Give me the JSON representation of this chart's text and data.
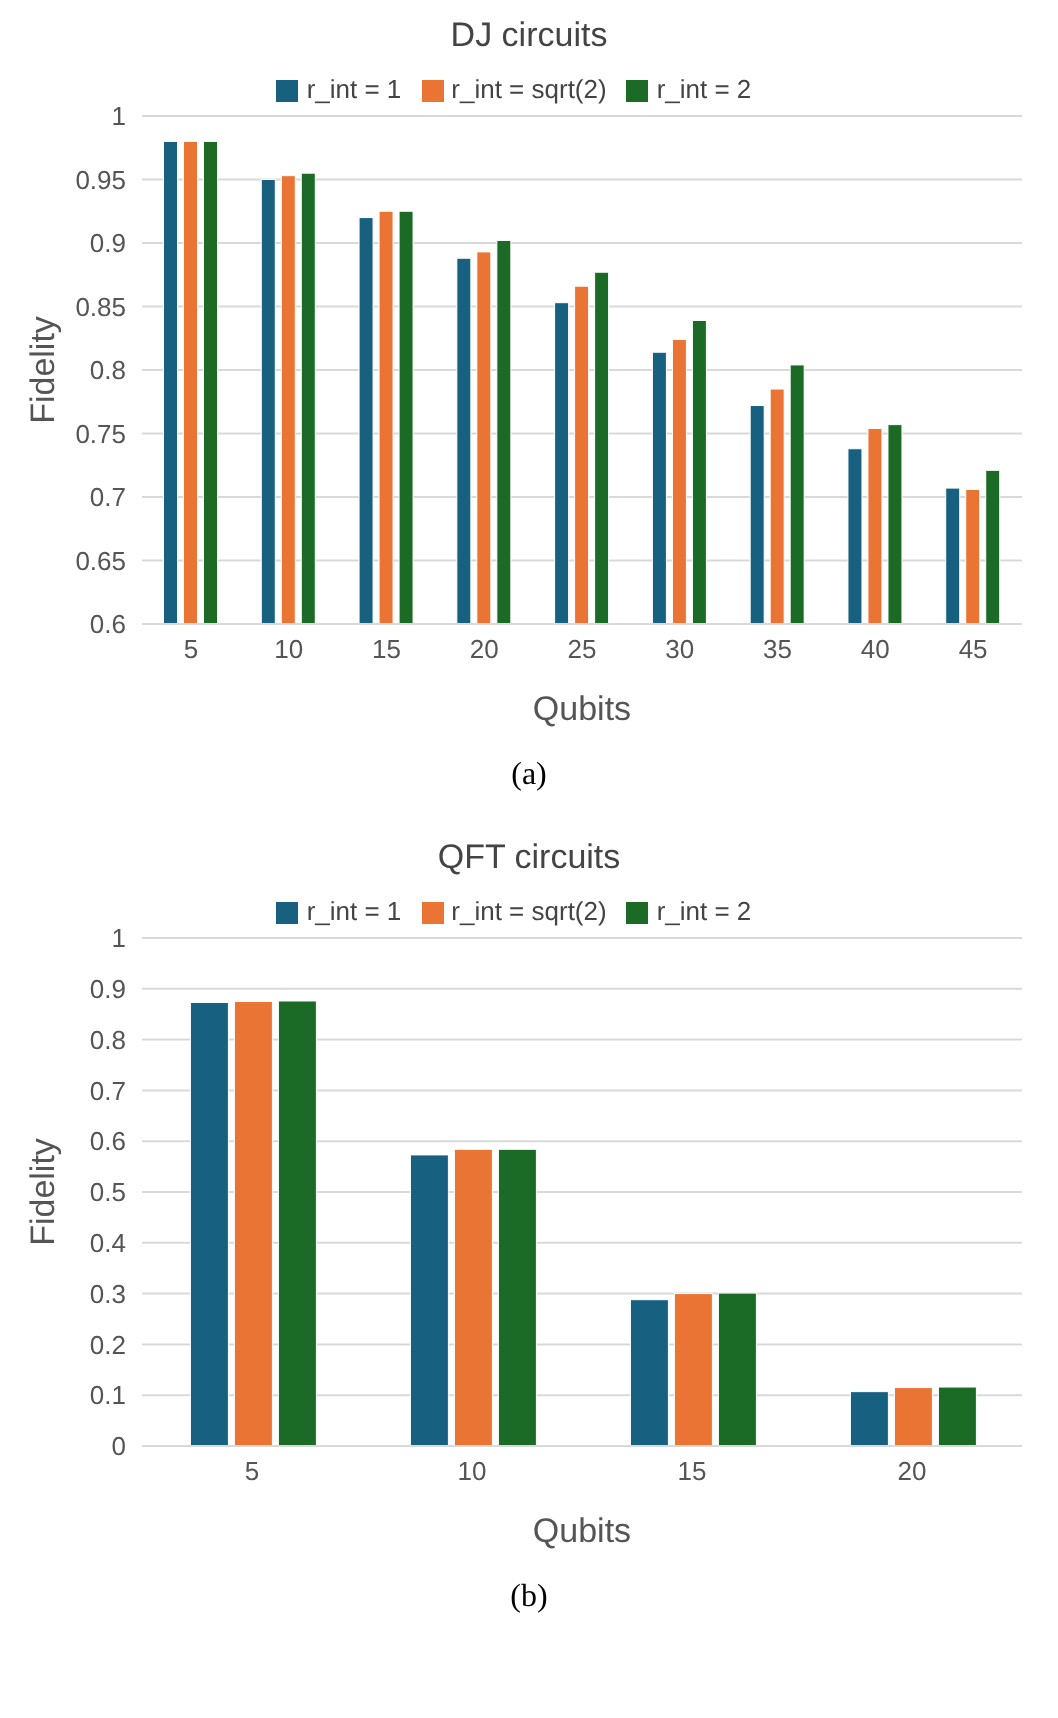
{
  "chart_data": [
    {
      "type": "bar",
      "title": "DJ circuits",
      "xlabel": "Qubits",
      "ylabel": "Fidelity",
      "categories": [
        "5",
        "10",
        "15",
        "20",
        "25",
        "30",
        "35",
        "40",
        "45"
      ],
      "series": [
        {
          "name": "r_int = 1",
          "color": "#17607f",
          "values": [
            0.98,
            0.95,
            0.92,
            0.888,
            0.853,
            0.814,
            0.772,
            0.738,
            0.707
          ]
        },
        {
          "name": "r_int = sqrt(2)",
          "color": "#ea7434",
          "values": [
            0.98,
            0.953,
            0.925,
            0.893,
            0.866,
            0.824,
            0.785,
            0.754,
            0.706
          ]
        },
        {
          "name": "r_int = 2",
          "color": "#1b6b27",
          "values": [
            0.98,
            0.955,
            0.925,
            0.902,
            0.877,
            0.839,
            0.804,
            0.757,
            0.721
          ]
        }
      ],
      "ylim": [
        0.6,
        1
      ],
      "yticks": [
        0.6,
        0.65,
        0.7,
        0.75,
        0.8,
        0.85,
        0.9,
        0.95,
        1
      ],
      "grid": "y",
      "legend": "top",
      "annotations": [
        "(a)"
      ]
    },
    {
      "type": "bar",
      "title": "QFT circuits",
      "xlabel": "Qubits",
      "ylabel": "Fidelity",
      "categories": [
        "5",
        "10",
        "15",
        "20"
      ],
      "series": [
        {
          "name": "r_int = 1",
          "color": "#17607f",
          "values": [
            0.873,
            0.573,
            0.288,
            0.107
          ]
        },
        {
          "name": "r_int = sqrt(2)",
          "color": "#ea7434",
          "values": [
            0.875,
            0.584,
            0.3,
            0.115
          ]
        },
        {
          "name": "r_int = 2",
          "color": "#1b6b27",
          "values": [
            0.876,
            0.584,
            0.301,
            0.116
          ]
        }
      ],
      "ylim": [
        0,
        1
      ],
      "yticks": [
        0,
        0.1,
        0.2,
        0.3,
        0.4,
        0.5,
        0.6,
        0.7,
        0.8,
        0.9,
        1
      ],
      "grid": "y",
      "legend": "top",
      "annotations": [
        "(b)"
      ]
    }
  ]
}
